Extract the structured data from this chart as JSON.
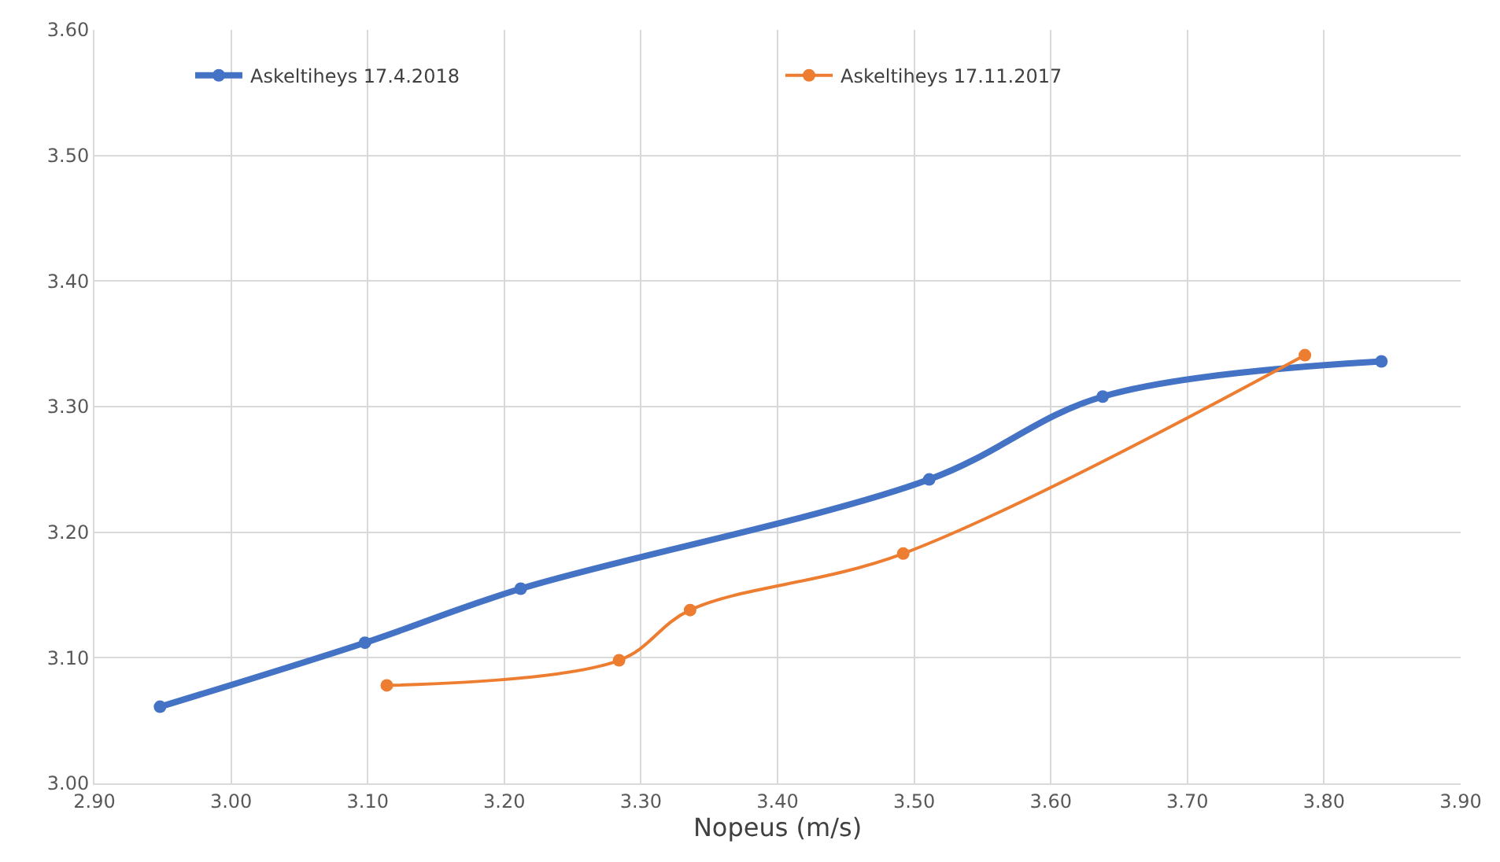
{
  "chart_data": {
    "type": "line",
    "xlabel": "Nopeus (m/s)",
    "xlim": [
      2.9,
      3.9
    ],
    "ylim": [
      3.0,
      3.6
    ],
    "xticks": [
      {
        "value": 2.9,
        "label": "2.90"
      },
      {
        "value": 3.0,
        "label": "3.00"
      },
      {
        "value": 3.1,
        "label": "3.10"
      },
      {
        "value": 3.2,
        "label": "3.20"
      },
      {
        "value": 3.3,
        "label": "3.30"
      },
      {
        "value": 3.4,
        "label": "3.40"
      },
      {
        "value": 3.5,
        "label": "3.50"
      },
      {
        "value": 3.6,
        "label": "3.60"
      },
      {
        "value": 3.7,
        "label": "3.70"
      },
      {
        "value": 3.8,
        "label": "3.80"
      },
      {
        "value": 3.9,
        "label": "3.90"
      }
    ],
    "yticks": [
      {
        "value": 3.0,
        "label": "3.00"
      },
      {
        "value": 3.1,
        "label": "3.10"
      },
      {
        "value": 3.2,
        "label": "3.20"
      },
      {
        "value": 3.3,
        "label": "3.30"
      },
      {
        "value": 3.4,
        "label": "3.40"
      },
      {
        "value": 3.5,
        "label": "3.50"
      },
      {
        "value": 3.6,
        "label": "3.60"
      }
    ],
    "grid": true,
    "legend": "top",
    "marker": "circle",
    "series": [
      {
        "name": "Askeltiheys 17.4.2018",
        "color": "#4472c4",
        "x": [
          2.948,
          3.098,
          3.212,
          3.511,
          3.638,
          3.842
        ],
        "values": [
          3.061,
          3.112,
          3.155,
          3.242,
          3.308,
          3.336
        ]
      },
      {
        "name": "Askeltiheys 17.11.2017",
        "color": "#ed7d31",
        "x": [
          3.114,
          3.284,
          3.336,
          3.492,
          3.786
        ],
        "values": [
          3.078,
          3.098,
          3.138,
          3.183,
          3.341
        ]
      }
    ]
  }
}
